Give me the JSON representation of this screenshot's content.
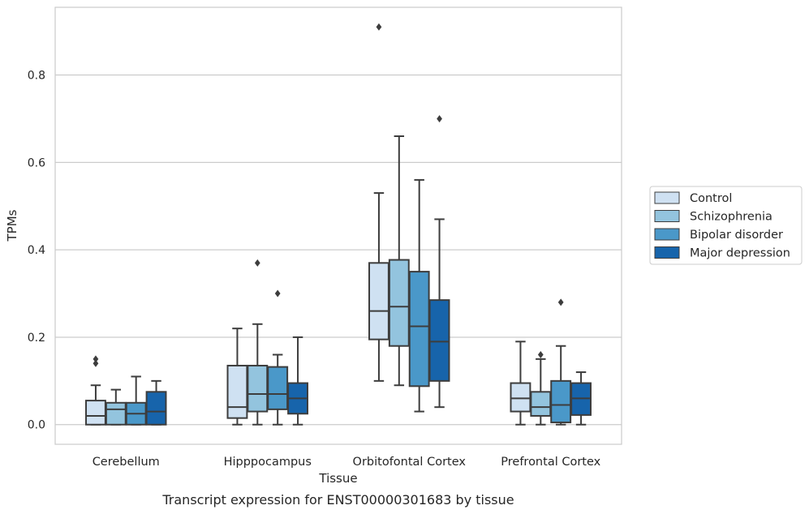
{
  "chart_data": {
    "type": "boxplot",
    "title": "",
    "caption": "Transcript expression for ENST00000301683 by tissue",
    "xlabel": "Tissue",
    "ylabel": "TPMs",
    "ylim": [
      -0.045,
      0.955
    ],
    "yticks": [
      0.0,
      0.2,
      0.4,
      0.6,
      0.8
    ],
    "ytick_labels": [
      "0.0",
      "0.2",
      "0.4",
      "0.6",
      "0.8"
    ],
    "grid": "horizontal",
    "legend_position": "right",
    "categories": [
      "Cerebellum",
      "Hipppocampus",
      "Orbitofontal Cortex",
      "Prefrontal Cortex"
    ],
    "series": [
      {
        "name": "Control",
        "color": "#cfe1f2",
        "boxes": [
          {
            "whislo": 0.0,
            "q1": 0.0,
            "med": 0.02,
            "q3": 0.055,
            "whishi": 0.09,
            "fliers": [
              0.14,
              0.15
            ]
          },
          {
            "whislo": 0.0,
            "q1": 0.015,
            "med": 0.04,
            "q3": 0.135,
            "whishi": 0.22,
            "fliers": []
          },
          {
            "whislo": 0.1,
            "q1": 0.195,
            "med": 0.26,
            "q3": 0.37,
            "whishi": 0.53,
            "fliers": [
              0.91
            ]
          },
          {
            "whislo": 0.0,
            "q1": 0.03,
            "med": 0.06,
            "q3": 0.095,
            "whishi": 0.19,
            "fliers": []
          }
        ]
      },
      {
        "name": "Schizophrenia",
        "color": "#93c4de",
        "boxes": [
          {
            "whislo": 0.0,
            "q1": 0.0,
            "med": 0.035,
            "q3": 0.05,
            "whishi": 0.08,
            "fliers": []
          },
          {
            "whislo": 0.0,
            "q1": 0.03,
            "med": 0.07,
            "q3": 0.135,
            "whishi": 0.23,
            "fliers": [
              0.37
            ]
          },
          {
            "whislo": 0.09,
            "q1": 0.18,
            "med": 0.27,
            "q3": 0.377,
            "whishi": 0.66,
            "fliers": []
          },
          {
            "whislo": 0.0,
            "q1": 0.02,
            "med": 0.04,
            "q3": 0.075,
            "whishi": 0.15,
            "fliers": [
              0.16
            ]
          }
        ]
      },
      {
        "name": "Bipolar disorder",
        "color": "#4a98c9",
        "boxes": [
          {
            "whislo": 0.0,
            "q1": 0.0,
            "med": 0.025,
            "q3": 0.05,
            "whishi": 0.11,
            "fliers": []
          },
          {
            "whislo": 0.0,
            "q1": 0.035,
            "med": 0.07,
            "q3": 0.132,
            "whishi": 0.16,
            "fliers": [
              0.3
            ]
          },
          {
            "whislo": 0.03,
            "q1": 0.088,
            "med": 0.225,
            "q3": 0.35,
            "whishi": 0.56,
            "fliers": []
          },
          {
            "whislo": 0.0,
            "q1": 0.005,
            "med": 0.045,
            "q3": 0.1,
            "whishi": 0.18,
            "fliers": [
              0.28
            ]
          }
        ]
      },
      {
        "name": "Major depression",
        "color": "#1764ab",
        "boxes": [
          {
            "whislo": 0.0,
            "q1": 0.0,
            "med": 0.03,
            "q3": 0.075,
            "whishi": 0.1,
            "fliers": []
          },
          {
            "whislo": 0.0,
            "q1": 0.025,
            "med": 0.06,
            "q3": 0.095,
            "whishi": 0.2,
            "fliers": []
          },
          {
            "whislo": 0.04,
            "q1": 0.1,
            "med": 0.19,
            "q3": 0.285,
            "whishi": 0.47,
            "fliers": [
              0.7
            ]
          },
          {
            "whislo": 0.0,
            "q1": 0.022,
            "med": 0.06,
            "q3": 0.095,
            "whishi": 0.12,
            "fliers": []
          }
        ]
      }
    ]
  }
}
